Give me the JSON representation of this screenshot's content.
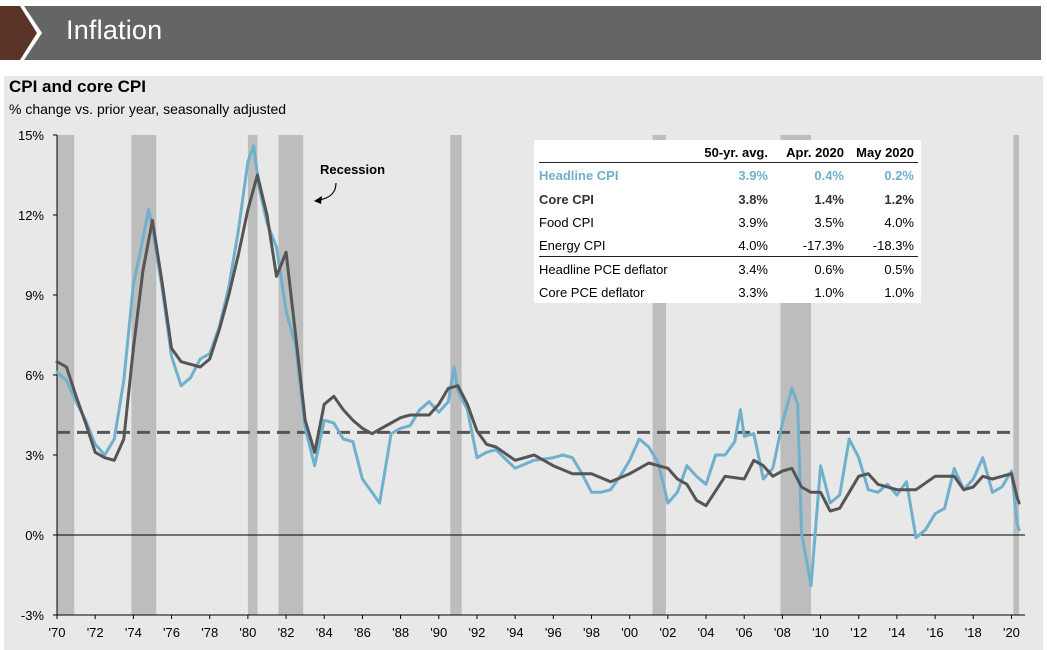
{
  "header": {
    "title": "Inflation"
  },
  "chart": {
    "title": "CPI and core CPI",
    "subtitle": "% change vs. prior year, seasonally adjusted",
    "annotation": "Recession"
  },
  "colors": {
    "banner": "#656565",
    "chevron": "#5a3527",
    "panel": "#e8e8e8",
    "headline_cpi": "#6fb0cc",
    "core_cpi": "#555555",
    "recession": "#bdbdbd",
    "average_line": "#555555"
  },
  "table": {
    "headers": [
      "",
      "50-yr. avg.",
      "Apr. 2020",
      "May 2020"
    ],
    "rows": [
      {
        "label": "Headline CPI",
        "values": [
          "3.9%",
          "0.4%",
          "0.2%"
        ]
      },
      {
        "label": "Core CPI",
        "values": [
          "3.8%",
          "1.4%",
          "1.2%"
        ]
      },
      {
        "label": "Food CPI",
        "values": [
          "3.9%",
          "3.5%",
          "4.0%"
        ]
      },
      {
        "label": "Energy CPI",
        "values": [
          "4.0%",
          "-17.3%",
          "-18.3%"
        ]
      },
      {
        "label": "Headline PCE deflator",
        "values": [
          "3.4%",
          "0.6%",
          "0.5%"
        ]
      },
      {
        "label": "Core PCE deflator",
        "values": [
          "3.3%",
          "1.0%",
          "1.0%"
        ]
      }
    ]
  },
  "chart_data": {
    "type": "line",
    "ylim": [
      -3,
      15
    ],
    "xlim": [
      1970,
      2020.5
    ],
    "y_ticks": [
      -3,
      0,
      3,
      6,
      9,
      12,
      15
    ],
    "y_tick_labels": [
      "-3%",
      "0%",
      "3%",
      "6%",
      "9%",
      "12%",
      "15%"
    ],
    "x_ticks": [
      1970,
      1972,
      1974,
      1976,
      1978,
      1980,
      1982,
      1984,
      1986,
      1988,
      1990,
      1992,
      1994,
      1996,
      1998,
      2000,
      2002,
      2004,
      2006,
      2008,
      2010,
      2012,
      2014,
      2016,
      2018,
      2020
    ],
    "x_tick_labels": [
      "'70",
      "'72",
      "'74",
      "'76",
      "'78",
      "'80",
      "'82",
      "'84",
      "'86",
      "'88",
      "'90",
      "'92",
      "'94",
      "'96",
      "'98",
      "'00",
      "'02",
      "'04",
      "'06",
      "'08",
      "'10",
      "'12",
      "'14",
      "'16",
      "'18",
      "'20"
    ],
    "average_line": 3.85,
    "recessions": [
      [
        1970.0,
        1970.9
      ],
      [
        1973.9,
        1975.2
      ],
      [
        1980.0,
        1980.5
      ],
      [
        1981.6,
        1982.9
      ],
      [
        1990.6,
        1991.2
      ],
      [
        2001.2,
        2001.9
      ],
      [
        2007.9,
        2009.5
      ],
      [
        2020.1,
        2020.4
      ]
    ],
    "series": [
      {
        "name": "Headline CPI",
        "x": [
          1970.0,
          1970.5,
          1971.0,
          1971.5,
          1972.0,
          1972.5,
          1973.0,
          1973.5,
          1974.0,
          1974.5,
          1974.8,
          1975.0,
          1975.5,
          1976.0,
          1976.5,
          1977.0,
          1977.5,
          1978.0,
          1978.5,
          1979.0,
          1979.5,
          1980.0,
          1980.3,
          1980.6,
          1981.0,
          1981.5,
          1982.0,
          1982.5,
          1983.0,
          1983.5,
          1984.0,
          1984.5,
          1985.0,
          1985.5,
          1986.0,
          1986.5,
          1986.9,
          1987.5,
          1988.0,
          1988.5,
          1989.0,
          1989.5,
          1990.0,
          1990.5,
          1990.8,
          1991.0,
          1991.5,
          1992.0,
          1992.5,
          1993.0,
          1994.0,
          1995.0,
          1996.0,
          1996.5,
          1997.0,
          1997.5,
          1998.0,
          1998.5,
          1999.0,
          1999.5,
          2000.0,
          2000.5,
          2001.0,
          2001.5,
          2002.0,
          2002.5,
          2003.0,
          2003.5,
          2004.0,
          2004.5,
          2005.0,
          2005.5,
          2005.8,
          2006.0,
          2006.5,
          2007.0,
          2007.5,
          2008.0,
          2008.5,
          2008.8,
          2009.0,
          2009.5,
          2010.0,
          2010.5,
          2011.0,
          2011.5,
          2012.0,
          2012.5,
          2013.0,
          2013.5,
          2014.0,
          2014.5,
          2015.0,
          2015.5,
          2016.0,
          2016.5,
          2017.0,
          2017.5,
          2018.0,
          2018.5,
          2019.0,
          2019.5,
          2020.0,
          2020.3,
          2020.4
        ],
        "values": [
          6.1,
          5.8,
          5.0,
          4.3,
          3.4,
          3.0,
          3.6,
          5.8,
          9.4,
          11.1,
          12.2,
          11.5,
          9.3,
          6.7,
          5.6,
          5.9,
          6.6,
          6.8,
          7.8,
          9.3,
          11.4,
          14.0,
          14.6,
          13.0,
          11.7,
          10.8,
          8.4,
          7.1,
          4.0,
          2.6,
          4.3,
          4.2,
          3.6,
          3.5,
          2.1,
          1.6,
          1.2,
          3.8,
          4.0,
          4.1,
          4.7,
          5.0,
          4.6,
          5.0,
          6.3,
          5.4,
          4.7,
          2.9,
          3.1,
          3.2,
          2.5,
          2.8,
          2.9,
          3.0,
          2.9,
          2.3,
          1.6,
          1.6,
          1.7,
          2.2,
          2.8,
          3.6,
          3.3,
          2.7,
          1.2,
          1.6,
          2.6,
          2.2,
          1.9,
          3.0,
          3.0,
          3.5,
          4.7,
          3.7,
          3.8,
          2.1,
          2.5,
          4.2,
          5.5,
          4.9,
          0.1,
          -1.9,
          2.6,
          1.2,
          1.5,
          3.6,
          2.9,
          1.7,
          1.6,
          1.9,
          1.5,
          2.0,
          -0.1,
          0.2,
          0.8,
          1.0,
          2.5,
          1.7,
          2.1,
          2.9,
          1.6,
          1.8,
          2.4,
          0.4,
          0.2
        ]
      },
      {
        "name": "Core CPI",
        "x": [
          1970.0,
          1970.5,
          1971.0,
          1971.5,
          1972.0,
          1972.5,
          1973.0,
          1973.5,
          1974.0,
          1974.5,
          1975.0,
          1975.5,
          1976.0,
          1976.5,
          1977.0,
          1977.5,
          1978.0,
          1978.5,
          1979.0,
          1979.5,
          1980.0,
          1980.5,
          1981.0,
          1981.5,
          1982.0,
          1982.5,
          1983.0,
          1983.5,
          1984.0,
          1984.5,
          1985.0,
          1985.5,
          1986.0,
          1986.5,
          1987.0,
          1987.5,
          1988.0,
          1988.5,
          1989.0,
          1989.5,
          1990.0,
          1990.5,
          1991.0,
          1991.5,
          1992.0,
          1992.5,
          1993.0,
          1994.0,
          1995.0,
          1996.0,
          1997.0,
          1998.0,
          1999.0,
          2000.0,
          2001.0,
          2002.0,
          2002.5,
          2003.0,
          2003.5,
          2004.0,
          2005.0,
          2006.0,
          2006.5,
          2007.0,
          2007.5,
          2008.0,
          2008.5,
          2009.0,
          2009.5,
          2010.0,
          2010.5,
          2011.0,
          2011.5,
          2012.0,
          2012.5,
          2013.0,
          2014.0,
          2015.0,
          2016.0,
          2017.0,
          2017.5,
          2018.0,
          2018.5,
          2019.0,
          2019.5,
          2020.0,
          2020.3,
          2020.4
        ],
        "values": [
          6.5,
          6.3,
          5.2,
          4.2,
          3.1,
          2.9,
          2.8,
          3.6,
          7.0,
          9.9,
          11.8,
          9.5,
          7.0,
          6.5,
          6.4,
          6.3,
          6.6,
          7.7,
          9.0,
          10.5,
          12.2,
          13.5,
          12.0,
          9.7,
          10.6,
          7.5,
          4.3,
          3.1,
          4.9,
          5.2,
          4.7,
          4.3,
          4.0,
          3.8,
          4.0,
          4.2,
          4.4,
          4.5,
          4.5,
          4.5,
          4.9,
          5.5,
          5.6,
          4.9,
          3.9,
          3.4,
          3.3,
          2.8,
          3.0,
          2.6,
          2.3,
          2.3,
          2.0,
          2.3,
          2.7,
          2.5,
          2.1,
          1.9,
          1.3,
          1.1,
          2.2,
          2.1,
          2.8,
          2.6,
          2.2,
          2.4,
          2.5,
          1.8,
          1.6,
          1.6,
          0.9,
          1.0,
          1.6,
          2.2,
          2.3,
          1.9,
          1.7,
          1.7,
          2.2,
          2.2,
          1.7,
          1.8,
          2.2,
          2.1,
          2.2,
          2.3,
          1.4,
          1.2
        ]
      }
    ]
  }
}
